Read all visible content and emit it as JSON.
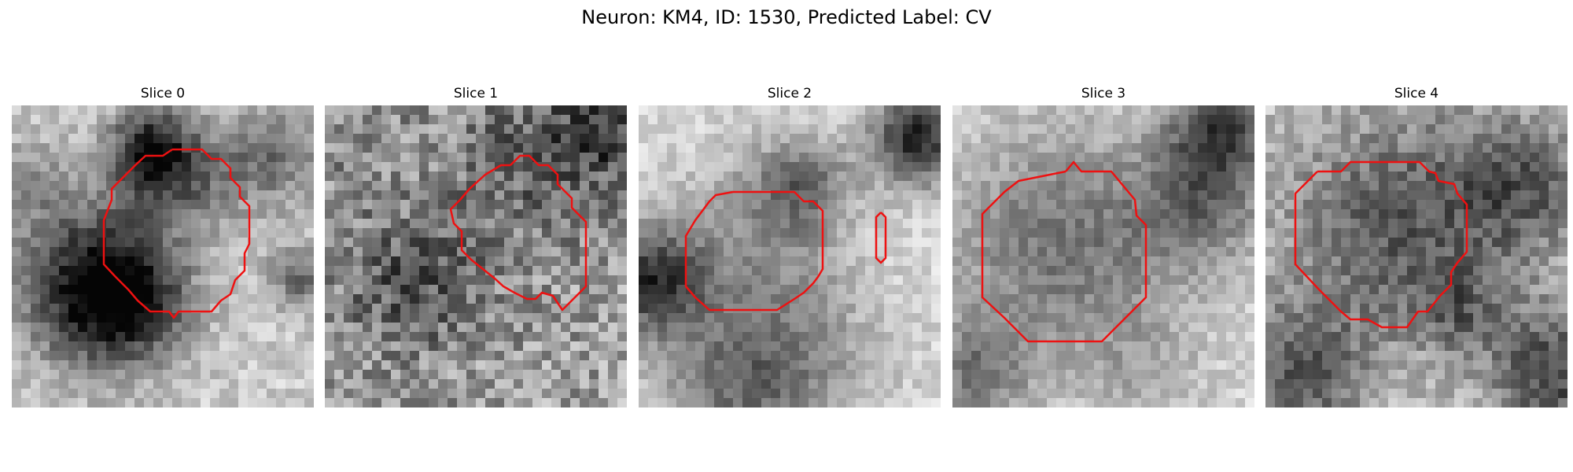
{
  "title": "Neuron: KM4, ID: 1530, Predicted Label: CV",
  "colors": {
    "contour": "#ee1111",
    "background": "#ffffff"
  },
  "slices": [
    {
      "label": "Slice 0"
    },
    {
      "label": "Slice 1"
    },
    {
      "label": "Slice 2"
    },
    {
      "label": "Slice 3"
    },
    {
      "label": "Slice 4"
    }
  ]
}
